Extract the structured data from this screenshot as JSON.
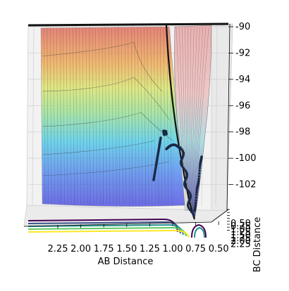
{
  "chart_data": {
    "type": "surface-3d",
    "title": "",
    "xlabel": "AB Distance",
    "ylabel": "BC Distance",
    "zlabel": "",
    "x_ticks": [
      "2.25",
      "2.00",
      "1.75",
      "1.50",
      "1.25",
      "1.00",
      "0.75",
      "0.50"
    ],
    "y_ticks": [
      "0.50",
      "0.75",
      "1.00",
      "1.25",
      "1.50",
      "1.75",
      "2.00",
      "2.25"
    ],
    "z_ticks": [
      "-90",
      "-92",
      "-94",
      "-96",
      "-98",
      "-100",
      "-102"
    ],
    "zlim": [
      -104,
      -90
    ],
    "colormap": "jet",
    "grid": true,
    "trajectory_color": "#1a2a48"
  }
}
